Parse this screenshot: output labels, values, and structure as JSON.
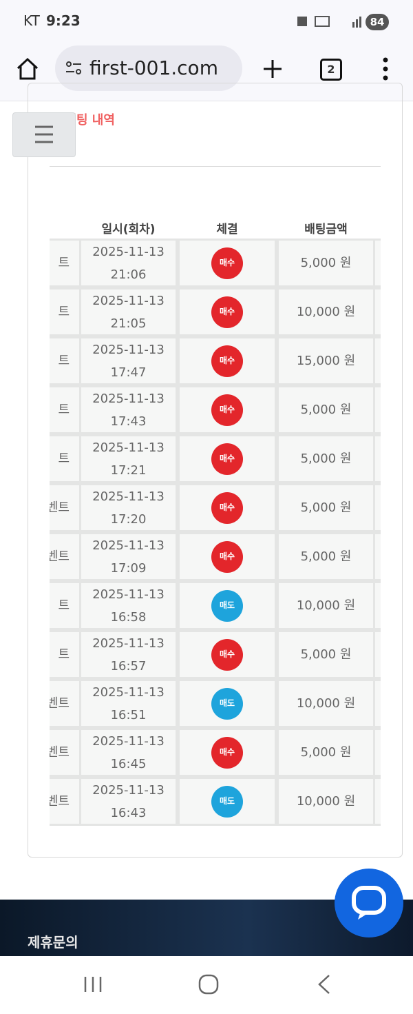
{
  "status_bar": {
    "carrier": "KT",
    "time": "9:23",
    "battery": "84"
  },
  "browser": {
    "url": "first-001.com",
    "tab_count": "2"
  },
  "section": {
    "title": "배팅 내역"
  },
  "table": {
    "headers": [
      "일시(회차)",
      "체결",
      "배팅금액"
    ],
    "rows": [
      {
        "game": "트",
        "date": "2025-11-13",
        "time": "21:06",
        "result": "매수",
        "color": "#e3262b",
        "amount": "5,000 원"
      },
      {
        "game": "트",
        "date": "2025-11-13",
        "time": "21:05",
        "result": "매수",
        "color": "#e3262b",
        "amount": "10,000 원"
      },
      {
        "game": "트",
        "date": "2025-11-13",
        "time": "17:47",
        "result": "매수",
        "color": "#e3262b",
        "amount": "15,000 원"
      },
      {
        "game": "트",
        "date": "2025-11-13",
        "time": "17:43",
        "result": "매수",
        "color": "#e3262b",
        "amount": "5,000 원"
      },
      {
        "game": "트",
        "date": "2025-11-13",
        "time": "17:21",
        "result": "매수",
        "color": "#e3262b",
        "amount": "5,000 원"
      },
      {
        "game": "벤트",
        "date": "2025-11-13",
        "time": "17:20",
        "result": "매수",
        "color": "#e3262b",
        "amount": "5,000 원"
      },
      {
        "game": "벤트",
        "date": "2025-11-13",
        "time": "17:09",
        "result": "매수",
        "color": "#e3262b",
        "amount": "5,000 원"
      },
      {
        "game": "트",
        "date": "2025-11-13",
        "time": "16:58",
        "result": "매도",
        "color": "#1ea4dc",
        "amount": "10,000 원"
      },
      {
        "game": "트",
        "date": "2025-11-13",
        "time": "16:57",
        "result": "매수",
        "color": "#e3262b",
        "amount": "5,000 원"
      },
      {
        "game": "벤트",
        "date": "2025-11-13",
        "time": "16:51",
        "result": "매도",
        "color": "#1ea4dc",
        "amount": "10,000 원"
      },
      {
        "game": "벤트",
        "date": "2025-11-13",
        "time": "16:45",
        "result": "매수",
        "color": "#e3262b",
        "amount": "5,000 원"
      },
      {
        "game": "벤트",
        "date": "2025-11-13",
        "time": "16:43",
        "result": "매도",
        "color": "#1ea4dc",
        "amount": "10,000 원"
      }
    ]
  },
  "footer": {
    "title": "제휴문의"
  }
}
